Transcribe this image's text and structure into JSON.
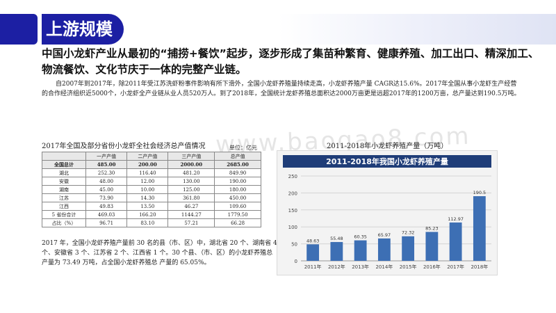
{
  "page": {
    "title": "上游规模",
    "headline": "中国小龙虾产业从最初的“捕捞+餐饮”起步，逐步形成了集苗种繁育、健康养殖、加工出口、精深加工、物流餐饮、文化节庆于一体的完整产业链。",
    "paragraph": "自2007年到2017年，除2011年受江苏洗虾粉事件影响有所下滑外，全国小龙虾养殖量持续走高，小龙虾养殖产量 CAGR达15.6%。2017年全国从事小龙虾生产经营的合作经济组织近5000个，小龙虾全产业链从业人员520万人。到了2018年，全国统计龙虾养殖总面积达2000万亩更是远超2017年的1200万亩，总产量达到190.5万吨。",
    "watermark": "www.baogao8.com",
    "accent_color": "#1c1fa3"
  },
  "table": {
    "caption": "2017年全国及部分省份小龙虾全社会经济总产值情况",
    "unit": "单位：亿元",
    "headers": [
      "",
      "一产产值",
      "二产产值",
      "三产产值",
      "总产值"
    ],
    "rows": [
      [
        "全国总计",
        "485.00",
        "200.00",
        "2000.00",
        "2685.00"
      ],
      [
        "湖北",
        "252.30",
        "116.40",
        "481.20",
        "849.90"
      ],
      [
        "安徽",
        "48.00",
        "12.00",
        "130.00",
        "190.00"
      ],
      [
        "湖南",
        "45.00",
        "10.00",
        "125.00",
        "180.00"
      ],
      [
        "江苏",
        "73.90",
        "14.30",
        "361.80",
        "450.00"
      ],
      [
        "江西",
        "49.83",
        "13.50",
        "46.27",
        "109.60"
      ],
      [
        "5 省份合计",
        "469.03",
        "166.20",
        "1144.27",
        "1779.50"
      ],
      [
        "占比（%）",
        "96.71",
        "83.10",
        "57.21",
        "66.28"
      ]
    ],
    "note": "2017 年，全国小龙虾养殖产量前 30 名的县（市、区）中，湖北省 20 个、湖南省 4 个、安徽省 3 个、江苏省 2 个、江西省 1 个。30 个县、（市、区）的小龙虾养殖总产量为 73.49 万吨，占全国小龙虾养殖总 产量的 65.05%。"
  },
  "chart_caption": "2011-2018年小龙虾养殖产量（万吨）",
  "chart_data": {
    "type": "bar",
    "title": "2011-2018年我国小龙虾养殖产量",
    "categories": [
      "2011年",
      "2012年",
      "2013年",
      "2014年",
      "2015年",
      "2016年",
      "2017年",
      "2018年"
    ],
    "values": [
      48.63,
      55.48,
      60.35,
      65.97,
      72.32,
      85.23,
      112.97,
      190.5
    ],
    "value_labels": [
      "48.63",
      "55.48",
      "60.35",
      "65.97",
      "72.32",
      "85.23",
      "112.97",
      "190.5"
    ],
    "yticks": [
      "0",
      "50",
      "100",
      "150",
      "200",
      "250"
    ],
    "ylim": [
      0,
      250
    ],
    "grid": true,
    "title_background": "#1f3d78",
    "bar_color": "#3d6fb4",
    "xlabel": "",
    "ylabel": ""
  }
}
